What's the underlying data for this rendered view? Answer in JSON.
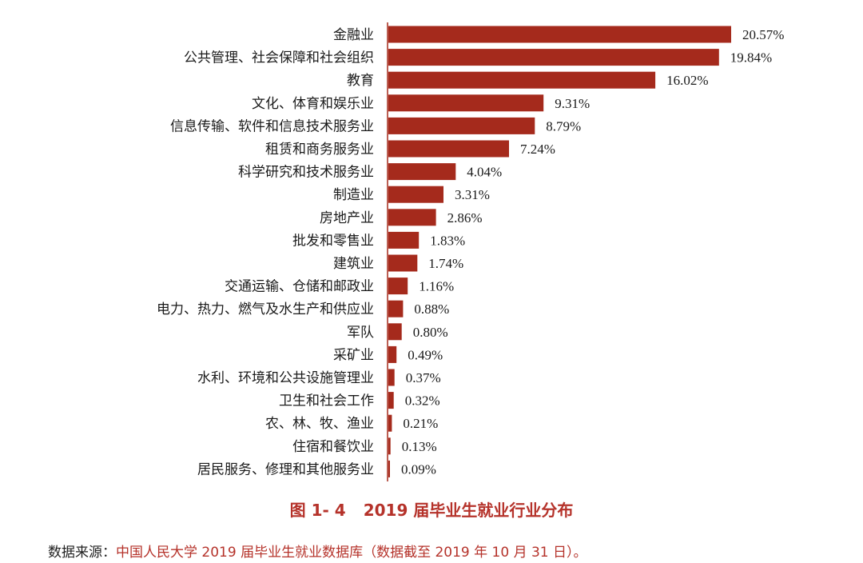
{
  "chart_data": {
    "type": "bar",
    "orientation": "horizontal",
    "categories": [
      "金融业",
      "公共管理、社会保障和社会组织",
      "教育",
      "文化、体育和娱乐业",
      "信息传输、软件和信息技术服务业",
      "租赁和商务服务业",
      "科学研究和技术服务业",
      "制造业",
      "房地产业",
      "批发和零售业",
      "建筑业",
      "交通运输、仓储和邮政业",
      "电力、热力、燃气及水生产和供应业",
      "军队",
      "采矿业",
      "水利、环境和公共设施管理业",
      "卫生和社会工作",
      "农、林、牧、渔业",
      "住宿和餐饮业",
      "居民服务、修理和其他服务业"
    ],
    "values": [
      20.57,
      19.84,
      16.02,
      9.31,
      8.79,
      7.24,
      4.04,
      3.31,
      2.86,
      1.83,
      1.74,
      1.16,
      0.88,
      0.8,
      0.49,
      0.37,
      0.32,
      0.21,
      0.13,
      0.09
    ],
    "value_labels": [
      "20.57%",
      "19.84%",
      "16.02%",
      "9.31%",
      "8.79%",
      "7.24%",
      "4.04%",
      "3.31%",
      "2.86%",
      "1.83%",
      "1.74%",
      "1.16%",
      "0.88%",
      "0.80%",
      "0.49%",
      "0.37%",
      "0.32%",
      "0.21%",
      "0.13%",
      "0.09%"
    ],
    "xlim": [
      0,
      21
    ],
    "bar_color": "#a52a1c",
    "title_number": "图 1- 4",
    "title": "2019 届毕业生就业行业分布",
    "source_label": "数据来源：",
    "source": "中国人民大学 2019 届毕业生就业数据库（数据截至 2019 年 10 月 31 日）。"
  },
  "colors": {
    "caption": "#b5322a",
    "bar": "#a52a1c"
  }
}
